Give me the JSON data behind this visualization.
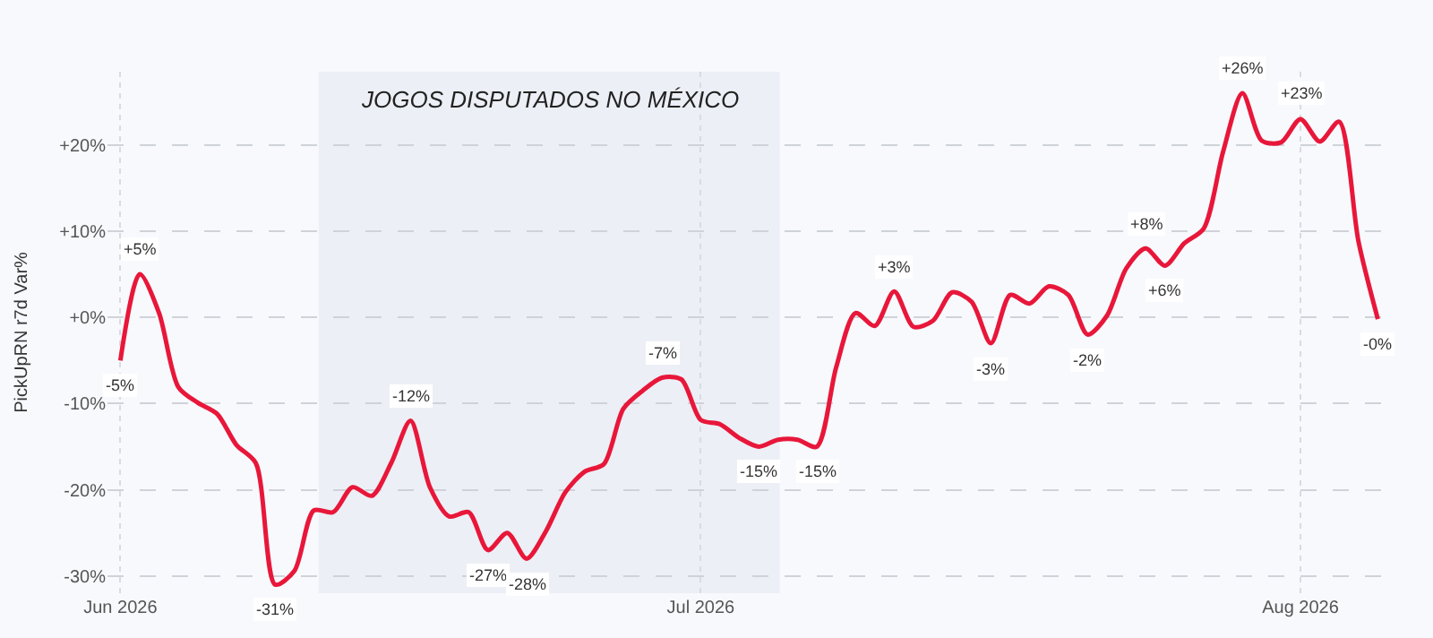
{
  "chart_data": {
    "type": "line",
    "ylabel": "PickUpRN r7d Var%",
    "x": [
      "2026-06-01",
      "2026-06-02",
      "2026-06-03",
      "2026-06-04",
      "2026-06-05",
      "2026-06-06",
      "2026-06-07",
      "2026-06-08",
      "2026-06-09",
      "2026-06-10",
      "2026-06-11",
      "2026-06-12",
      "2026-06-13",
      "2026-06-14",
      "2026-06-15",
      "2026-06-16",
      "2026-06-17",
      "2026-06-18",
      "2026-06-19",
      "2026-06-20",
      "2026-06-21",
      "2026-06-22",
      "2026-06-23",
      "2026-06-24",
      "2026-06-25",
      "2026-06-26",
      "2026-06-27",
      "2026-06-28",
      "2026-06-29",
      "2026-06-30",
      "2026-07-01",
      "2026-07-02",
      "2026-07-03",
      "2026-07-04",
      "2026-07-05",
      "2026-07-06",
      "2026-07-07",
      "2026-07-08",
      "2026-07-09",
      "2026-07-10",
      "2026-07-11",
      "2026-07-12",
      "2026-07-13",
      "2026-07-14",
      "2026-07-15",
      "2026-07-16",
      "2026-07-17",
      "2026-07-18",
      "2026-07-19",
      "2026-07-20",
      "2026-07-21",
      "2026-07-22",
      "2026-07-23",
      "2026-07-24",
      "2026-07-25",
      "2026-07-26",
      "2026-07-27",
      "2026-07-28",
      "2026-07-29",
      "2026-07-30",
      "2026-07-31",
      "2026-08-01",
      "2026-08-02",
      "2026-08-03",
      "2026-08-04",
      "2026-08-05"
    ],
    "series": [
      {
        "color": "#e8173a",
        "values": [
          -5,
          5,
          0.5,
          -8.1,
          -9.9,
          -11.2,
          -14.8,
          -16.9,
          -31,
          -29.4,
          -22.4,
          -22.6,
          -19.7,
          -20.7,
          -16.9,
          -12,
          -19.7,
          -23.1,
          -22.6,
          -27,
          -25,
          -28,
          -24.8,
          -20.3,
          -17.9,
          -17,
          -10.6,
          -8.5,
          -7,
          -7.2,
          -11.9,
          -12.4,
          -14,
          -15,
          -14.2,
          -14.2,
          -15,
          -5.8,
          0.5,
          -1,
          3,
          -1.1,
          -0.4,
          2.9,
          1.8,
          -3,
          2.6,
          1.6,
          3.6,
          2.6,
          -2,
          0.2,
          5.7,
          8,
          6,
          8.6,
          10.3,
          19.2,
          26,
          20.5,
          20.3,
          23,
          20.4,
          22.7,
          8.8,
          -0.2
        ],
        "value_labels": [
          "-5%",
          "+5%",
          null,
          null,
          null,
          null,
          null,
          null,
          "-31%",
          null,
          null,
          null,
          null,
          null,
          null,
          "-12%",
          null,
          null,
          null,
          "-27%",
          null,
          "-28%",
          null,
          null,
          null,
          null,
          null,
          null,
          "-7%",
          null,
          null,
          null,
          null,
          "-15%",
          null,
          null,
          "-15%",
          null,
          null,
          null,
          "+3%",
          null,
          null,
          null,
          null,
          "-3%",
          null,
          null,
          null,
          null,
          "-2%",
          null,
          null,
          "+8%",
          "+6%",
          null,
          null,
          null,
          "+26%",
          null,
          null,
          "+23%",
          null,
          null,
          null,
          "-0%"
        ]
      }
    ],
    "xlim": [
      "2026-05-31T08:00",
      "2026-08-06T00:00"
    ],
    "xticks": [
      {
        "value": "2026-06-01",
        "label": "Jun 2026"
      },
      {
        "value": "2026-07-01",
        "label": "Jul 2026"
      },
      {
        "value": "2026-08-01",
        "label": "Aug 2026"
      }
    ],
    "ylim": [
      -32,
      28.5
    ],
    "yticks": [
      {
        "value": -30,
        "label": "-30%"
      },
      {
        "value": -20,
        "label": "-20%"
      },
      {
        "value": -10,
        "label": "-10%"
      },
      {
        "value": 0,
        "label": "+0%"
      },
      {
        "value": 10,
        "label": "+10%"
      },
      {
        "value": 20,
        "label": "+20%"
      }
    ],
    "bands": [
      {
        "axis": "x",
        "from": "2026-06-11T06:00",
        "to": "2026-07-05T02:00",
        "label": "JOGOS DISPUTADOS NO MÉXICO",
        "color": "#eceff5"
      }
    ],
    "grid": true,
    "marker": "none",
    "line_style": "solid"
  }
}
